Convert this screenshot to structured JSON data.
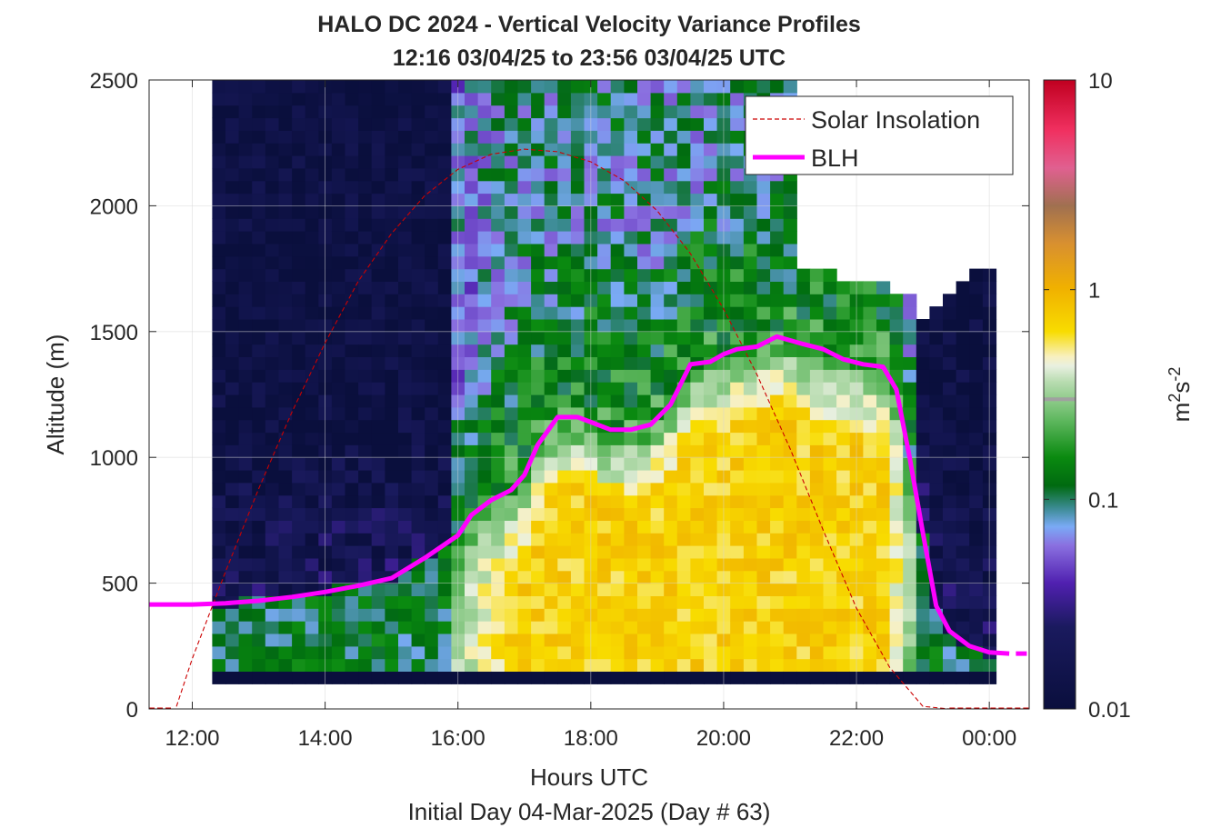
{
  "chart_data": {
    "type": "heatmap",
    "title": "HALO DC 2024 - Vertical Velocity Variance Profiles",
    "subtitle": "12:16 03/04/25 to 23:56 03/04/25  UTC",
    "xlabel": "Hours UTC",
    "xlabel2": "Initial Day 04-Mar-2025 (Day # 63)",
    "ylabel": "Altitude (m)",
    "xlim": [
      11.35,
      24.6
    ],
    "ylim": [
      0,
      2500
    ],
    "x_ticks": [
      {
        "value": 12,
        "label": "12:00"
      },
      {
        "value": 14,
        "label": "14:00"
      },
      {
        "value": 16,
        "label": "16:00"
      },
      {
        "value": 18,
        "label": "18:00"
      },
      {
        "value": 20,
        "label": "20:00"
      },
      {
        "value": 22,
        "label": "22:00"
      },
      {
        "value": 24,
        "label": "00:00"
      }
    ],
    "y_ticks": [
      {
        "value": 0,
        "label": "0"
      },
      {
        "value": 500,
        "label": "500"
      },
      {
        "value": 1000,
        "label": "1000"
      },
      {
        "value": 1500,
        "label": "1500"
      },
      {
        "value": 2000,
        "label": "2000"
      },
      {
        "value": 2500,
        "label": "2500"
      }
    ],
    "grid": true,
    "legend_position": "top-right",
    "colorbar": {
      "scale": "log",
      "min": 0.01,
      "max": 10,
      "ticks": [
        {
          "value": 0.01,
          "label": "0.01"
        },
        {
          "value": 0.1,
          "label": "0.1"
        },
        {
          "value": 1,
          "label": "1"
        },
        {
          "value": 10,
          "label": "10"
        }
      ],
      "label_base": "m",
      "label_sup1": "2",
      "label_mid": "s",
      "label_sup2": "-2",
      "stops": [
        [
          0.0,
          "#0a0f3d"
        ],
        [
          0.13,
          "#1a1a5e"
        ],
        [
          0.2,
          "#5020b0"
        ],
        [
          0.26,
          "#8a70e0"
        ],
        [
          0.29,
          "#7aaaf5"
        ],
        [
          0.32,
          "#3a8a90"
        ],
        [
          0.355,
          "#006a10"
        ],
        [
          0.4,
          "#0a8a10"
        ],
        [
          0.46,
          "#60b860"
        ],
        [
          0.52,
          "#b8dcb0"
        ],
        [
          0.545,
          "#e8f0e0"
        ],
        [
          0.56,
          "#f8f0c0"
        ],
        [
          0.6,
          "#f8dc00"
        ],
        [
          0.67,
          "#f0b000"
        ],
        [
          0.74,
          "#d89030"
        ],
        [
          0.8,
          "#a07050"
        ],
        [
          0.86,
          "#e06090"
        ],
        [
          0.92,
          "#f03060"
        ],
        [
          1.0,
          "#c00020"
        ]
      ],
      "gray_marker_value": 0.3
    },
    "grid_time_start": 12.3,
    "grid_time_step": 0.2,
    "grid_alt_start": 100,
    "grid_alt_step": 50,
    "variance_m2s2": [],
    "series": [
      {
        "name": "Solar Insolation",
        "style": "dashed",
        "color": "#cc0000",
        "x": [
          11.35,
          11.75,
          12.0,
          12.5,
          13.0,
          13.5,
          14.0,
          14.5,
          15.0,
          15.5,
          16.0,
          16.5,
          17.0,
          17.5,
          18.0,
          18.5,
          19.0,
          19.5,
          20.0,
          20.5,
          21.0,
          21.5,
          22.0,
          22.5,
          23.0,
          23.4,
          24.6
        ],
        "y": [
          0,
          0,
          200,
          545,
          875,
          1180,
          1455,
          1700,
          1890,
          2040,
          2145,
          2205,
          2225,
          2215,
          2175,
          2100,
          1980,
          1810,
          1590,
          1330,
          1035,
          710,
          400,
          165,
          10,
          0,
          0
        ]
      },
      {
        "name": "BLH",
        "style": "solid",
        "color": "#ff00ff",
        "x": [
          11.35,
          12.0,
          12.5,
          13.0,
          13.5,
          14.0,
          14.5,
          15.0,
          15.5,
          16.0,
          16.2,
          16.5,
          16.8,
          17.0,
          17.2,
          17.5,
          17.8,
          18.0,
          18.3,
          18.6,
          18.9,
          19.2,
          19.5,
          19.8,
          20.0,
          20.2,
          20.5,
          20.8,
          21.2,
          21.5,
          21.8,
          22.1,
          22.4,
          22.6,
          22.8,
          23.0,
          23.2,
          23.4,
          23.7,
          24.0,
          24.3
        ],
        "y": [
          415,
          415,
          420,
          430,
          445,
          465,
          490,
          520,
          600,
          690,
          770,
          830,
          870,
          930,
          1050,
          1160,
          1160,
          1140,
          1110,
          1110,
          1130,
          1210,
          1370,
          1380,
          1410,
          1430,
          1440,
          1480,
          1450,
          1430,
          1390,
          1370,
          1360,
          1270,
          1000,
          700,
          410,
          310,
          250,
          225,
          220
        ]
      }
    ]
  }
}
